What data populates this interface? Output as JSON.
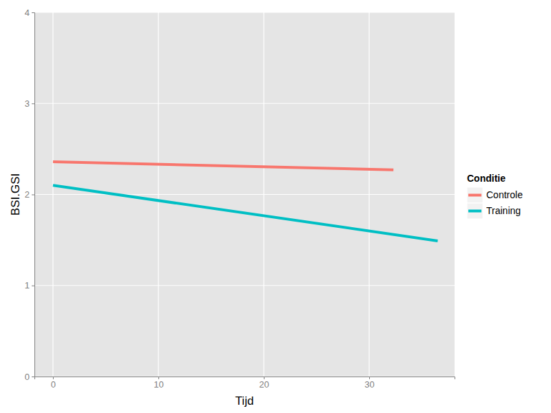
{
  "chart_data": {
    "type": "line",
    "x_label": "Tijd",
    "y_label": "BSI.GSI",
    "legend_title": "Conditie",
    "legend": "right",
    "grid": true,
    "xlim": [
      -1.76,
      38.1
    ],
    "xticks": [
      0,
      10,
      20,
      30
    ],
    "ylim": [
      0,
      4
    ],
    "yticks": [
      0,
      1,
      2,
      3,
      4
    ],
    "series": [
      {
        "name": "Controle",
        "color": "#F8766D",
        "x": [
          0,
          32.3
        ],
        "values": [
          2.36,
          2.27
        ]
      },
      {
        "name": "Training",
        "color": "#00BFC4",
        "x": [
          0,
          36.5
        ],
        "values": [
          2.1,
          1.49
        ]
      }
    ]
  }
}
